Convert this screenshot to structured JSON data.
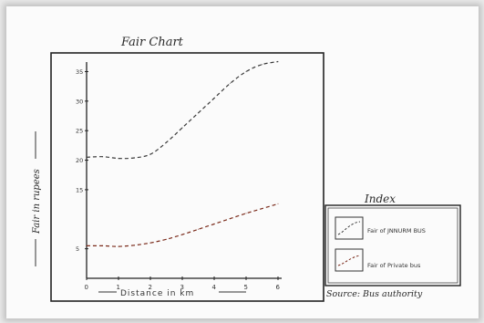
{
  "chart_data": {
    "type": "line",
    "title": "Fair Chart",
    "xlabel": "Distance in km",
    "ylabel": "Fair in rupees",
    "xticks": [
      "0",
      "1",
      "2",
      "3",
      "4",
      "5",
      "6"
    ],
    "yticks": [
      "5",
      "15",
      "20",
      "25",
      "30",
      "35"
    ],
    "xlim": [
      0,
      6
    ],
    "ylim": [
      0,
      36
    ],
    "series": [
      {
        "name": "Fair of JNNURM BUS",
        "color": "#3a3a3a",
        "x": [
          0,
          0.5,
          1,
          1.5,
          2,
          2.5,
          3,
          3.5,
          4,
          4.5,
          5,
          5.5,
          6
        ],
        "y": [
          20.5,
          20.6,
          20.3,
          20.4,
          21,
          23,
          25.5,
          28,
          30.5,
          33,
          35,
          36.2,
          36.7
        ]
      },
      {
        "name": "Fair of Private bus",
        "color": "#7a2a1a",
        "x": [
          0,
          0.5,
          1,
          1.5,
          2,
          2.5,
          3,
          3.5,
          4,
          4.5,
          5,
          5.5,
          6
        ],
        "y": [
          5.5,
          5.5,
          5.4,
          5.6,
          6,
          6.6,
          7.4,
          8.3,
          9.2,
          10.1,
          11,
          11.8,
          12.6
        ]
      }
    ]
  },
  "legend": {
    "title": "Index",
    "source": "Source: Bus authority"
  }
}
